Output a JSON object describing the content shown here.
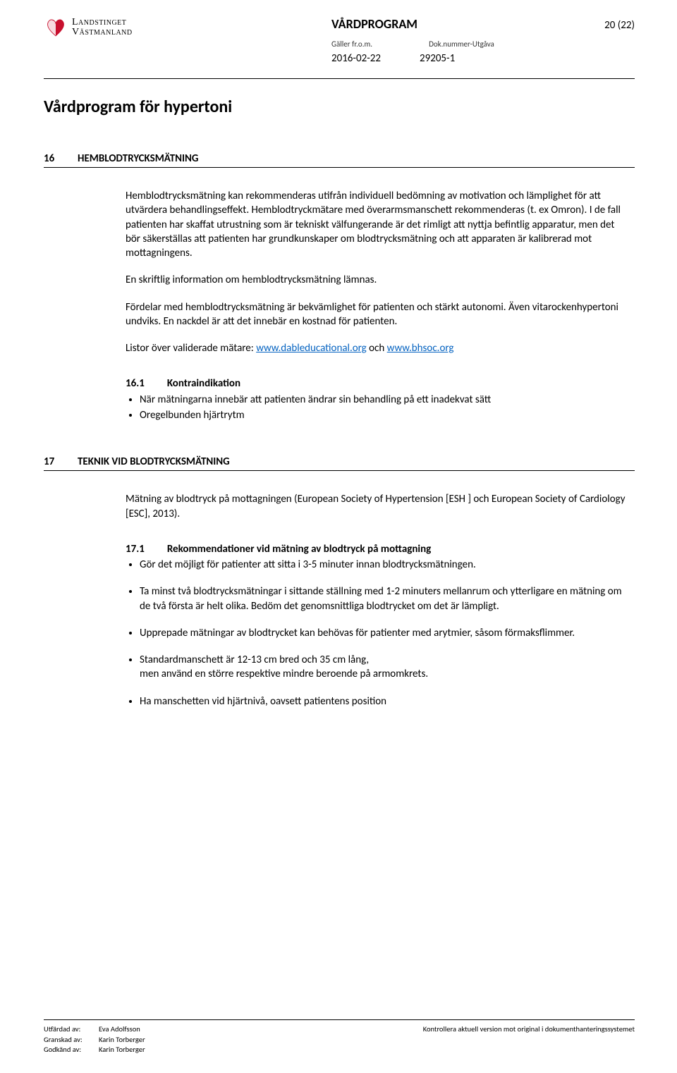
{
  "header": {
    "logo": {
      "line1": "Landstinget",
      "line2": "Västmanland",
      "color_red": "#c8102e"
    },
    "doc_type": "VÅRDPROGRAM",
    "page_indicator": "20 (22)",
    "meta_label_left": "Gäller fr.o.m.",
    "meta_label_right": "Dok.nummer-Utgåva",
    "valid_from": "2016-02-22",
    "doc_number": "29205-1"
  },
  "title": "Vårdprogram för hypertoni",
  "s16": {
    "num": "16",
    "title": "HEMBLODTRYCKSMÄTNING",
    "p1": "Hemblodtrycksmätning kan rekommenderas utifrån individuell bedömning av motivation och lämplighet för att utvärdera behandlingseffekt. Hemblodtryckmätare med överarmsmanschett rekommenderas (t. ex Omron). I de fall patienten har skaffat utrustning som är tekniskt välfungerande är det rimligt att nyttja befintlig apparatur, men det bör säkerställas att patienten har grundkunskaper om blodtrycksmätning och att apparaten är kalibrerad mot mottagningens.",
    "p2": "En skriftlig information om hemblodtrycksmätning lämnas.",
    "p3": "Fördelar med hemblodtrycksmätning är bekvämlighet för patienten och stärkt autonomi. Även vitarockenhypertoni undviks. En nackdel är att det innebär en kostnad för patienten.",
    "p4_prefix": "Listor över validerade mätare: ",
    "link1": "www.dableducational.org",
    "p4_mid": " och ",
    "link2": "www.bhsoc.org",
    "sub_num": "16.1",
    "sub_title": "Kontraindikation",
    "bullets": [
      "När mätningarna innebär att patienten ändrar sin behandling på ett inadekvat sätt",
      "Oregelbunden hjärtrytm"
    ]
  },
  "s17": {
    "num": "17",
    "title": "TEKNIK VID BLODTRYCKSMÄTNING",
    "p1": "Mätning av blodtryck på mottagningen (European Society of Hypertension [ESH ] och European Society of Cardiology [ESC], 2013).",
    "sub_num": "17.1",
    "sub_title": "Rekommendationer vid mätning av blodtryck på mottagning",
    "bullets": [
      "Gör det möjligt för patienter att sitta i 3-5 minuter innan blodtrycksmätningen.",
      "Ta minst två blodtrycksmätningar i sittande ställning med 1-2 minuters mellanrum och ytterligare en mätning om de två första är helt olika. Bedöm det genomsnittliga blodtrycket om det är lämpligt.",
      "Upprepade mätningar av blodtrycket kan behövas för patienter med arytmier, såsom förmaksflimmer.",
      "Standardmanschett  är 12-13 cm bred och 35 cm lång,\nmen använd en större respektive mindre beroende på armomkrets.",
      "Ha manschetten vid hjärtnivå, oavsett patientens position"
    ]
  },
  "footer": {
    "issued_label": "Utfärdad av:",
    "issued_by": "Eva Adolfsson",
    "reviewed_label": "Granskad av:",
    "reviewed_by": "Karin Torberger",
    "approved_label": "Godkänd av:",
    "approved_by": "Karin Torberger",
    "right_text": "Kontrollera aktuell version mot original i dokumenthanteringssystemet"
  }
}
